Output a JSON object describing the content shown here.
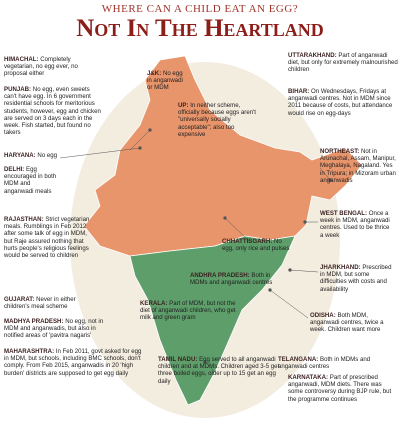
{
  "header": {
    "kicker": "WHERE CAN A CHILD EAT AN EGG?",
    "title": "Not In The Heartland"
  },
  "notes": [
    {
      "state": "HIMACHAL:",
      "text": "Completely vegetarian, no egg ever, no proposal either"
    },
    {
      "state": "PUNJAB:",
      "text": "No egg, even sweets can't have egg. In 6 government residential schools for meritorious students, however, egg and chicken are served on 3 days each in the week. Fish started, but found no takers"
    },
    {
      "state": "HARYANA:",
      "text": "No egg"
    },
    {
      "state": "DELHI:",
      "text": "Egg encouraged in both MDM and anganwadi meals"
    },
    {
      "state": "RAJASTHAN:",
      "text": "Strict vegetarian meals. Rumblings in Feb 2012 after some talk of egg in MDM, but Raje assured nothing that hurts people's religious feelings would be served to children"
    },
    {
      "state": "GUJARAT:",
      "text": "Never in either children's meal scheme"
    },
    {
      "state": "MADHYA PRADESH:",
      "text": "No egg, not in MDM and anganwadis, but also in notified areas of 'pavitra nagaris'"
    },
    {
      "state": "MAHARASHTRA:",
      "text": "In Feb 2011, govt asked for egg in MDM, but schools, including BMC schools, don't comply. From Feb 2015, anganwadis in 20 'high burden' districts are supposed to get egg daily"
    },
    {
      "state": "J&K:",
      "text": "No egg in anganwadi or MDM"
    },
    {
      "state": "UP:",
      "text": "In neither scheme, officially because eggs aren't \"universally socially acceptable\"; also too expensive"
    },
    {
      "state": "CHHATTISGARH:",
      "text": "No egg, only rice and pulses"
    },
    {
      "state": "ANDHRA PRADESH:",
      "text": "Both in MDMs and anganwadi centres"
    },
    {
      "state": "KERALA:",
      "text": "Part of MDM, but not the diet of anganwadi children, who get milk and green gram"
    },
    {
      "state": "TAMIL NADU:",
      "text": "Egg served to all anganwadi children and at MDMs. Children aged 3-5 get three boiled eggs, older up to 15 get an egg daily"
    },
    {
      "state": "UTTARAKHAND:",
      "text": "Part of anganwadi diet, but only for extremely malnourished children"
    },
    {
      "state": "BIHAR:",
      "text": "On Wednesdays, Fridays at anganwadi centres. Not in MDM since 2011 because of costs, but attendance would rise on egg-days"
    },
    {
      "state": "NORTHEAST:",
      "text": "Not in Arunachal, Assam, Manipur, Meghalaya, Nagaland. Yes in Tripura; in Mizoram urban anganwadis"
    },
    {
      "state": "WEST BENGAL:",
      "text": "Once a week in MDM, anganwadi centres. Used to be thrice a week"
    },
    {
      "state": "JHARKHAND:",
      "text": "Prescribed in MDM, but some difficulties with costs and availability"
    },
    {
      "state": "ODISHA:",
      "text": "Both MDM, anganwadi centres, twice a week. Children want more"
    },
    {
      "state": "TELANGANA:",
      "text": "Both in MDMs and anganwadi centres"
    },
    {
      "state": "KARNATAKA:",
      "text": "Part of prescribed anganwadi, MDM diets. There was some controversy during BJP rule, but the programme continues"
    }
  ]
}
